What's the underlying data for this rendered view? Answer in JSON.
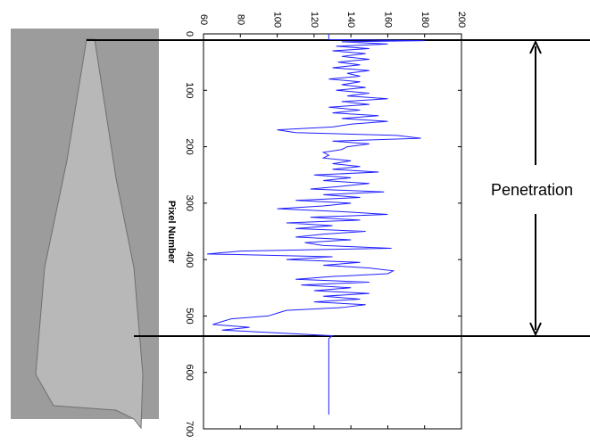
{
  "chart_data": {
    "type": "line",
    "xlabel": "Pixel Number",
    "annotation": "Penetration",
    "xlim": [
      0,
      700
    ],
    "xticks": [
      0,
      100,
      200,
      300,
      400,
      500,
      600,
      700
    ],
    "ylim": [
      60,
      200
    ],
    "yticks": [
      60,
      80,
      100,
      120,
      140,
      160,
      180,
      200
    ],
    "x": [
      0,
      10,
      12,
      14,
      18,
      22,
      26,
      30,
      35,
      40,
      45,
      50,
      55,
      60,
      65,
      70,
      75,
      80,
      85,
      90,
      95,
      100,
      105,
      110,
      115,
      120,
      125,
      130,
      135,
      140,
      145,
      150,
      155,
      160,
      165,
      170,
      175,
      180,
      185,
      190,
      195,
      200,
      205,
      210,
      215,
      220,
      225,
      230,
      235,
      240,
      245,
      250,
      255,
      260,
      265,
      270,
      275,
      280,
      285,
      290,
      295,
      300,
      305,
      310,
      315,
      320,
      325,
      330,
      335,
      340,
      345,
      350,
      355,
      360,
      365,
      370,
      375,
      380,
      385,
      390,
      395,
      400,
      405,
      410,
      415,
      420,
      425,
      430,
      435,
      440,
      445,
      450,
      455,
      460,
      465,
      470,
      475,
      480,
      485,
      490,
      495,
      500,
      505,
      510,
      515,
      520,
      525,
      530,
      535,
      540,
      545,
      675
    ],
    "series": [
      {
        "color": "#2020ff",
        "values": [
          128,
          128,
          180,
          135,
          160,
          132,
          150,
          130,
          148,
          135,
          150,
          133,
          145,
          130,
          150,
          138,
          145,
          128,
          145,
          135,
          148,
          132,
          150,
          138,
          160,
          135,
          150,
          128,
          145,
          130,
          155,
          135,
          160,
          140,
          130,
          100,
          110,
          165,
          178,
          130,
          150,
          138,
          135,
          125,
          128,
          125,
          140,
          130,
          145,
          130,
          155,
          120,
          140,
          125,
          150,
          135,
          118,
          158,
          125,
          145,
          110,
          140,
          125,
          100,
          135,
          160,
          118,
          145,
          105,
          130,
          110,
          148,
          125,
          110,
          140,
          115,
          125,
          162,
          80,
          62,
          130,
          105,
          145,
          125,
          150,
          163,
          160,
          130,
          110,
          150,
          113,
          140,
          120,
          150,
          125,
          145,
          120,
          148,
          135,
          105,
          100,
          95,
          75,
          70,
          65,
          85,
          70,
          100,
          130,
          128,
          128,
          128
        ]
      }
    ]
  }
}
